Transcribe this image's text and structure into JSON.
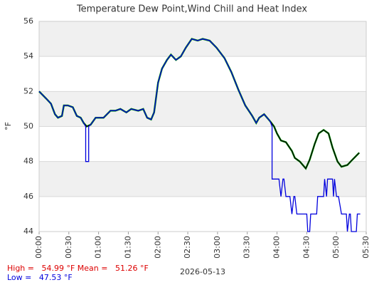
{
  "chart_data": {
    "type": "line",
    "title": "Temperature Dew Point,Wind Chill and Heat Index",
    "y_label": "°F",
    "x_label": "2026-05-13",
    "xlim": [
      0,
      330
    ],
    "xticks": [
      {
        "value": 0,
        "label": "00:00"
      },
      {
        "value": 30,
        "label": "00:30"
      },
      {
        "value": 60,
        "label": "01:00"
      },
      {
        "value": 90,
        "label": "01:30"
      },
      {
        "value": 120,
        "label": "02:00"
      },
      {
        "value": 150,
        "label": "02:30"
      },
      {
        "value": 180,
        "label": "03:00"
      },
      {
        "value": 210,
        "label": "03:30"
      },
      {
        "value": 240,
        "label": "04:00"
      },
      {
        "value": 270,
        "label": "04:30"
      },
      {
        "value": 300,
        "label": "05:00"
      },
      {
        "value": 330,
        "label": "05:30"
      }
    ],
    "ylim": [
      44,
      56
    ],
    "yticks": [
      44,
      46,
      48,
      50,
      52,
      54,
      56
    ],
    "grid": true,
    "series": [
      {
        "color": "#00a000",
        "x": [
          0,
          7,
          12,
          16,
          19,
          23,
          25,
          29,
          34,
          38,
          42,
          45,
          48,
          52,
          57,
          65,
          72,
          77,
          82,
          88,
          93,
          100,
          105,
          109,
          113,
          116,
          120,
          124,
          129,
          133,
          138,
          143,
          148,
          154,
          160,
          165,
          172,
          179,
          187,
          194,
          201,
          208,
          215,
          219,
          222,
          227,
          233,
          237,
          240,
          244,
          249,
          255,
          258,
          263,
          269,
          273,
          278,
          282,
          287,
          292,
          296,
          301,
          305,
          311,
          316,
          323
        ],
        "values": [
          52.0,
          51.6,
          51.3,
          50.7,
          50.5,
          50.6,
          51.2,
          51.2,
          51.1,
          50.6,
          50.5,
          50.2,
          50.0,
          50.1,
          50.5,
          50.5,
          50.9,
          50.9,
          51.0,
          50.8,
          51.0,
          50.9,
          51.0,
          50.5,
          50.4,
          50.8,
          52.5,
          53.3,
          53.8,
          54.1,
          53.8,
          54.0,
          54.5,
          55.0,
          54.9,
          55.0,
          54.9,
          54.5,
          53.9,
          53.1,
          52.1,
          51.2,
          50.6,
          50.2,
          50.5,
          50.7,
          50.3,
          50.0,
          49.6,
          49.2,
          49.1,
          48.6,
          48.2,
          48.0,
          47.6,
          48.1,
          49.0,
          49.6,
          49.8,
          49.6,
          48.8,
          48.0,
          47.7,
          47.8,
          48.1,
          48.5
        ]
      },
      {
        "color": "#000000",
        "x": [
          0,
          7,
          12,
          16,
          19,
          23,
          25,
          29,
          34,
          38,
          42,
          45,
          48,
          52,
          57,
          65,
          72,
          77,
          82,
          88,
          93,
          100,
          105,
          109,
          113,
          116,
          120,
          124,
          129,
          133,
          138,
          143,
          148,
          154,
          160,
          165,
          172,
          179,
          187,
          194,
          201,
          208,
          215,
          219,
          222,
          227,
          233,
          237,
          240,
          244,
          249,
          255,
          258,
          263,
          269,
          273,
          278,
          282,
          287,
          292,
          296,
          301,
          305,
          311,
          316,
          323
        ],
        "values": [
          52.0,
          51.6,
          51.3,
          50.7,
          50.5,
          50.6,
          51.2,
          51.2,
          51.1,
          50.6,
          50.5,
          50.2,
          50.0,
          50.1,
          50.5,
          50.5,
          50.9,
          50.9,
          51.0,
          50.8,
          51.0,
          50.9,
          51.0,
          50.5,
          50.4,
          50.8,
          52.5,
          53.3,
          53.8,
          54.1,
          53.8,
          54.0,
          54.5,
          55.0,
          54.9,
          55.0,
          54.9,
          54.5,
          53.9,
          53.1,
          52.1,
          51.2,
          50.6,
          50.2,
          50.5,
          50.7,
          50.3,
          50.0,
          49.6,
          49.2,
          49.1,
          48.6,
          48.2,
          48.0,
          47.6,
          48.1,
          49.0,
          49.6,
          49.8,
          49.6,
          48.8,
          48.0,
          47.7,
          47.8,
          48.1,
          48.5
        ]
      },
      {
        "color": "#0000dd",
        "x": [
          0,
          7,
          12,
          16,
          19,
          23,
          25,
          29,
          34,
          38,
          42,
          45,
          47,
          47,
          50,
          50,
          52,
          57,
          65,
          72,
          77,
          82,
          88,
          93,
          100,
          105,
          109,
          113,
          116,
          120,
          124,
          129,
          133,
          138,
          143,
          148,
          154,
          160,
          165,
          172,
          179,
          187,
          194,
          201,
          208,
          215,
          219,
          222,
          227,
          233,
          235,
          235,
          242,
          244,
          246,
          247,
          249,
          253,
          255,
          257,
          258,
          260,
          270,
          271,
          273,
          274,
          280,
          281,
          287,
          288,
          290,
          291,
          296,
          297,
          298,
          300,
          302,
          305,
          310,
          311,
          313,
          314,
          315,
          320,
          321,
          324
        ],
        "values": [
          52.0,
          51.6,
          51.3,
          50.7,
          50.5,
          50.6,
          51.2,
          51.2,
          51.1,
          50.6,
          50.5,
          50.2,
          50.0,
          48.0,
          48.0,
          50.0,
          50.1,
          50.5,
          50.5,
          50.9,
          50.9,
          51.0,
          50.8,
          51.0,
          50.9,
          51.0,
          50.5,
          50.4,
          50.8,
          52.5,
          53.3,
          53.8,
          54.1,
          53.8,
          54.0,
          54.5,
          55.0,
          54.9,
          55.0,
          54.9,
          54.5,
          53.9,
          53.1,
          52.1,
          51.2,
          50.6,
          50.2,
          50.5,
          50.7,
          50.3,
          50.0,
          47,
          47,
          46,
          47,
          47,
          46,
          46,
          45,
          46,
          46,
          45,
          45,
          44,
          44,
          45,
          45,
          46,
          46,
          47,
          46,
          47,
          47,
          46,
          47,
          46,
          46,
          45,
          45,
          44,
          45,
          45,
          44,
          44,
          45,
          45
        ]
      }
    ],
    "footer_lines": [
      {
        "text": "High =   54.99 °F Mean =   51.26 °F",
        "color": "#dd0000"
      },
      {
        "text": "Low =   47.53 °F",
        "color": "#0000dd"
      }
    ]
  }
}
